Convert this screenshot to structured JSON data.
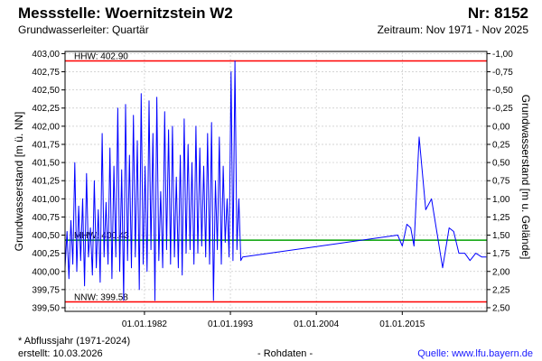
{
  "header": {
    "title": "Messstelle: Woernitzstein W2",
    "number": "Nr: 8152",
    "aquifer": "Grundwasserleiter: Quartär",
    "period": "Zeitraum: Nov 1971 - Nov 2025"
  },
  "footer": {
    "footnote": "* Abflussjahr (1971-2024)",
    "created": "erstellt:  10.03.2026",
    "raw": "- Rohdaten -",
    "source": "Quelle:  www.lfu.bayern.de"
  },
  "colors": {
    "series": "#0000ff",
    "hhw": "#ff0000",
    "mhw": "#00a000",
    "nnw": "#ff0000",
    "grid": "#c8c8c8"
  },
  "chart_data": {
    "type": "line",
    "ylabel": "Grundwasserstand [m ü. NN]",
    "ylabel_right": "Grundwasserstand [m u. Gelände]",
    "ylim": [
      399.45,
      403.03
    ],
    "yticks": [
      "403,00",
      "402,75",
      "402,50",
      "402,25",
      "402,00",
      "401,75",
      "401,50",
      "401,25",
      "401,00",
      "400,75",
      "400,50",
      "400,25",
      "400,00",
      "399,75",
      "399,50"
    ],
    "yticks_right": [
      "-1,00",
      "-0,75",
      "-0,50",
      "-0,25",
      "0,00",
      "0,25",
      "0,50",
      "0,75",
      "1,00",
      "1,25",
      "1,50",
      "1,75",
      "2,00",
      "2,25",
      "2,50"
    ],
    "xlim": [
      "1971-11-01",
      "2025-11-01"
    ],
    "xticks": [
      "01.01.1982",
      "01.01.1993",
      "01.01.2004",
      "01.01.2015"
    ],
    "reference_lines": [
      {
        "label": "HHW: 402.90",
        "value": 402.9
      },
      {
        "label": "MHW: 400.43",
        "value": 400.43
      },
      {
        "label": "NNW: 399.58",
        "value": 399.58
      }
    ],
    "series": [
      {
        "x": [
          "1971-11-01",
          "1972-02-01",
          "1972-05-01",
          "1972-08-01",
          "1972-11-01",
          "1973-02-01",
          "1973-05-01",
          "1973-08-01",
          "1973-11-01",
          "1974-02-01",
          "1974-05-01",
          "1974-08-01",
          "1974-11-01",
          "1975-02-01",
          "1975-05-01",
          "1975-08-01",
          "1975-11-01",
          "1976-02-01",
          "1976-05-01",
          "1976-08-01",
          "1976-11-01",
          "1977-02-01",
          "1977-05-01",
          "1977-08-01",
          "1977-11-01",
          "1978-02-01",
          "1978-05-01",
          "1978-08-01",
          "1978-11-01",
          "1979-02-01",
          "1979-05-01",
          "1979-08-01",
          "1979-11-01",
          "1980-02-01",
          "1980-05-01",
          "1980-08-01",
          "1980-11-01",
          "1981-02-01",
          "1981-05-01",
          "1981-08-01",
          "1981-11-01",
          "1982-02-01",
          "1982-05-01",
          "1982-08-01",
          "1982-11-01",
          "1983-02-01",
          "1983-05-01",
          "1983-08-01",
          "1983-11-01",
          "1984-02-01",
          "1984-05-01",
          "1984-08-01",
          "1984-11-01",
          "1985-02-01",
          "1985-05-01",
          "1985-08-01",
          "1985-11-01",
          "1986-02-01",
          "1986-05-01",
          "1986-08-01",
          "1986-11-01",
          "1987-02-01",
          "1987-05-01",
          "1987-08-01",
          "1987-11-01",
          "1988-02-01",
          "1988-05-01",
          "1988-08-01",
          "1988-11-01",
          "1989-02-01",
          "1989-05-01",
          "1989-08-01",
          "1989-11-01",
          "1990-02-01",
          "1990-05-01",
          "1990-08-01",
          "1990-11-01",
          "1991-02-01",
          "1991-05-01",
          "1991-08-01",
          "1991-11-01",
          "1992-02-01",
          "1992-05-01",
          "1992-08-01",
          "1992-11-01",
          "1993-02-01",
          "1993-05-01",
          "1993-08-01",
          "1993-11-01",
          "1994-02-01",
          "1994-05-01",
          "1994-08-01",
          "2014-06-01",
          "2015-01-01",
          "2015-08-01",
          "2016-02-01",
          "2016-07-01",
          "2017-03-01",
          "2018-01-01",
          "2018-10-01",
          "2019-06-01",
          "2020-03-01",
          "2021-01-01",
          "2021-08-01",
          "2022-04-01",
          "2023-01-01",
          "2023-09-01",
          "2024-06-01",
          "2025-03-01",
          "2025-10-01"
        ],
        "y": [
          400.05,
          400.55,
          399.9,
          400.7,
          400.1,
          401.5,
          400.0,
          400.9,
          400.15,
          401.0,
          399.8,
          401.35,
          400.2,
          400.6,
          399.95,
          401.25,
          400.05,
          400.85,
          399.85,
          401.9,
          400.2,
          400.95,
          400.1,
          401.7,
          399.9,
          401.45,
          400.2,
          402.25,
          400.0,
          401.4,
          399.6,
          402.3,
          400.15,
          401.6,
          400.05,
          402.15,
          400.2,
          401.8,
          399.75,
          402.45,
          400.1,
          401.45,
          400.0,
          402.35,
          400.3,
          401.9,
          399.6,
          402.4,
          400.15,
          401.1,
          400.05,
          402.2,
          400.3,
          401.95,
          400.1,
          402.0,
          400.2,
          401.3,
          400.05,
          401.6,
          399.95,
          402.1,
          400.25,
          401.75,
          400.3,
          401.5,
          400.1,
          402.0,
          400.25,
          401.7,
          400.35,
          401.45,
          400.2,
          401.9,
          400.1,
          402.05,
          399.6,
          401.25,
          400.3,
          401.85,
          400.1,
          401.45,
          400.4,
          401.0,
          400.2,
          402.75,
          400.15,
          402.9,
          400.3,
          401.0,
          400.15,
          400.2,
          400.5,
          400.35,
          400.65,
          400.6,
          400.35,
          401.85,
          400.85,
          401.0,
          400.55,
          400.05,
          400.6,
          400.55,
          400.25,
          400.25,
          400.15,
          400.25,
          400.2,
          400.2
        ]
      }
    ]
  }
}
